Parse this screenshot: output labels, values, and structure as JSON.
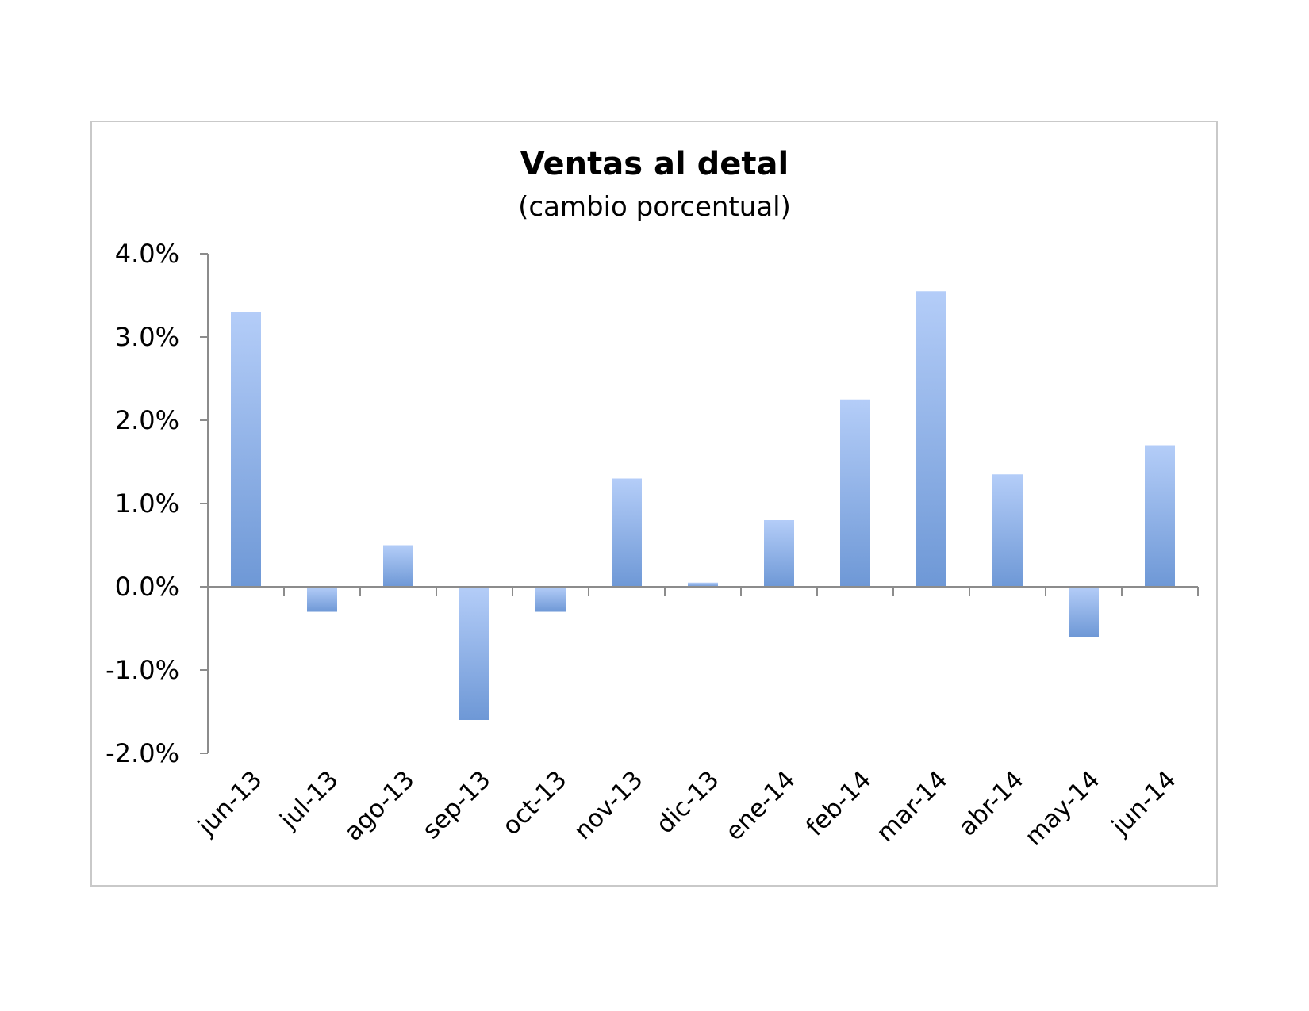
{
  "chart_data": {
    "type": "bar",
    "title": "Ventas al detal",
    "subtitle": "(cambio porcentual)",
    "categories": [
      "jun-13",
      "jul-13",
      "ago-13",
      "sep-13",
      "oct-13",
      "nov-13",
      "dic-13",
      "ene-14",
      "feb-14",
      "mar-14",
      "abr-14",
      "may-14",
      "jun-14"
    ],
    "values": [
      3.3,
      -0.3,
      0.5,
      -1.6,
      -0.3,
      1.3,
      0.05,
      0.8,
      2.25,
      3.55,
      1.35,
      -0.6,
      1.7
    ],
    "ylim": [
      -2.0,
      4.0
    ],
    "yticks": [
      "4.0%",
      "3.0%",
      "2.0%",
      "1.0%",
      "0.0%",
      "-1.0%",
      "-2.0%"
    ],
    "ytick_values": [
      4,
      3,
      2,
      1,
      0,
      -1,
      -2
    ],
    "grid": false,
    "legend": "none",
    "colors": {
      "bar_light": "#b4cdf8",
      "bar_dark": "#6e98d6",
      "axis": "#8c8c8c"
    }
  }
}
